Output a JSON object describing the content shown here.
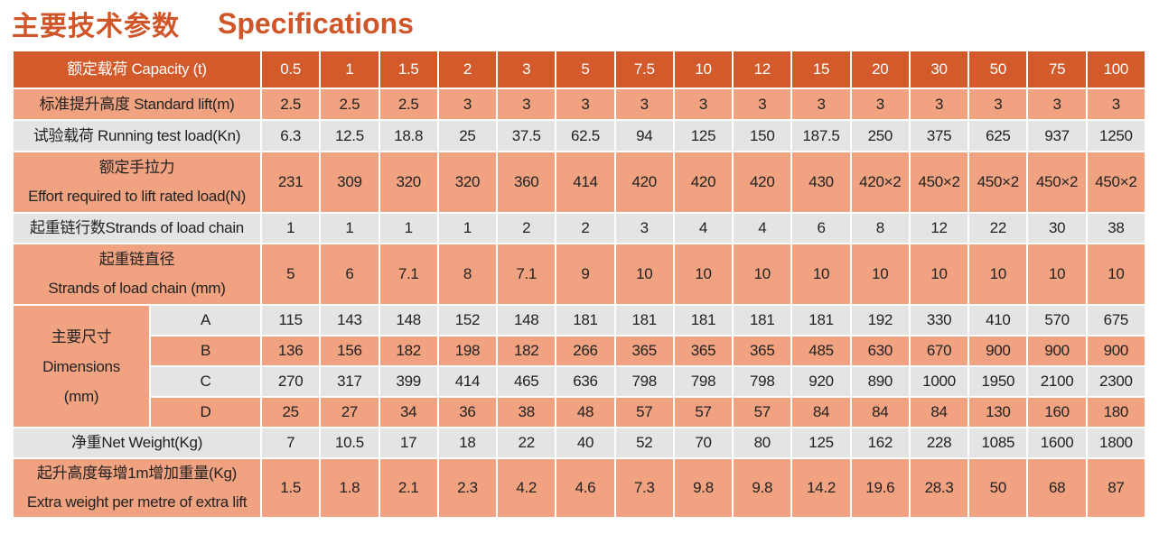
{
  "title": {
    "zh": "主要技术参数",
    "en": "Specifications"
  },
  "table": {
    "rows": [
      {
        "label": [
          "额定载荷  Capacity (t)"
        ],
        "values": [
          "0.5",
          "1",
          "1.5",
          "2",
          "3",
          "5",
          "7.5",
          "10",
          "12",
          "15",
          "20",
          "30",
          "50",
          "75",
          "100"
        ]
      },
      {
        "label": [
          "标准提升高度   Standard lift(m)"
        ],
        "values": [
          "2.5",
          "2.5",
          "2.5",
          "3",
          "3",
          "3",
          "3",
          "3",
          "3",
          "3",
          "3",
          "3",
          "3",
          "3",
          "3"
        ]
      },
      {
        "label": [
          "试验载荷  Running test load(Kn)"
        ],
        "values": [
          "6.3",
          "12.5",
          "18.8",
          "25",
          "37.5",
          "62.5",
          "94",
          "125",
          "150",
          "187.5",
          "250",
          "375",
          "625",
          "937",
          "1250"
        ]
      },
      {
        "label": [
          "额定手拉力",
          "Effort required to lift rated load(N)"
        ],
        "values": [
          "231",
          "309",
          "320",
          "320",
          "360",
          "414",
          "420",
          "420",
          "420",
          "430",
          "420×2",
          "450×2",
          "450×2",
          "450×2",
          "450×2"
        ]
      },
      {
        "label": [
          "起重链行数Strands of load chain"
        ],
        "values": [
          "1",
          "1",
          "1",
          "1",
          "2",
          "2",
          "3",
          "4",
          "4",
          "6",
          "8",
          "12",
          "22",
          "30",
          "38"
        ]
      },
      {
        "label": [
          "起重链直径",
          "Strands of load chain (mm)"
        ],
        "values": [
          "5",
          "6",
          "7.1",
          "8",
          "7.1",
          "9",
          "10",
          "10",
          "10",
          "10",
          "10",
          "10",
          "10",
          "10",
          "10"
        ]
      }
    ],
    "dimensions": {
      "label": [
        "主要尺寸",
        "Dimensions",
        "(mm)"
      ],
      "rows": [
        {
          "key": "A",
          "values": [
            "115",
            "143",
            "148",
            "152",
            "148",
            "181",
            "181",
            "181",
            "181",
            "181",
            "192",
            "330",
            "410",
            "570",
            "675"
          ]
        },
        {
          "key": "B",
          "values": [
            "136",
            "156",
            "182",
            "198",
            "182",
            "266",
            "365",
            "365",
            "365",
            "485",
            "630",
            "670",
            "900",
            "900",
            "900"
          ]
        },
        {
          "key": "C",
          "values": [
            "270",
            "317",
            "399",
            "414",
            "465",
            "636",
            "798",
            "798",
            "798",
            "920",
            "890",
            "1000",
            "1950",
            "2100",
            "2300"
          ]
        },
        {
          "key": "D",
          "values": [
            "25",
            "27",
            "34",
            "36",
            "38",
            "48",
            "57",
            "57",
            "57",
            "84",
            "84",
            "84",
            "130",
            "160",
            "180"
          ]
        }
      ]
    },
    "footer_rows": [
      {
        "label": [
          "净重Net Weight(Kg)"
        ],
        "values": [
          "7",
          "10.5",
          "17",
          "18",
          "22",
          "40",
          "52",
          "70",
          "80",
          "125",
          "162",
          "228",
          "1085",
          "1600",
          "1800"
        ]
      },
      {
        "label": [
          "起升高度每增1m增加重量(Kg)",
          "Extra weight per metre of extra lift"
        ],
        "values": [
          "1.5",
          "1.8",
          "2.1",
          "2.3",
          "4.2",
          "4.6",
          "7.3",
          "9.8",
          "9.8",
          "14.2",
          "19.6",
          "28.3",
          "50",
          "68",
          "87"
        ]
      }
    ]
  }
}
